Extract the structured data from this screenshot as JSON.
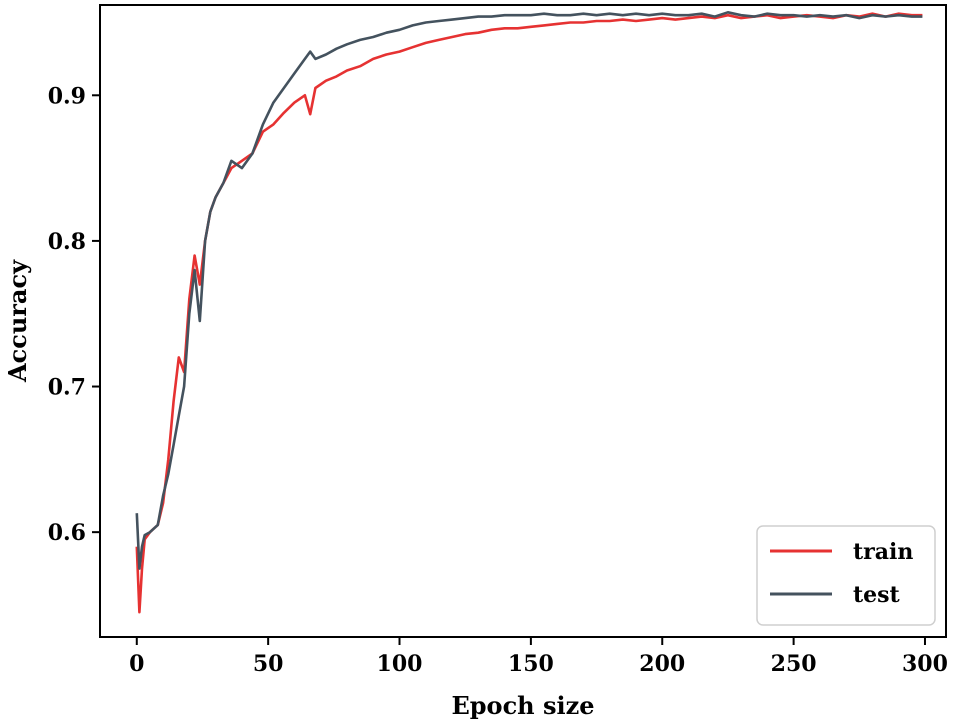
{
  "chart_data": {
    "type": "line",
    "title": "",
    "xlabel": "Epoch size",
    "ylabel": "Accuracy",
    "xlim": [
      -14,
      308
    ],
    "ylim": [
      0.528,
      0.962
    ],
    "xticks": [
      0,
      50,
      100,
      150,
      200,
      250,
      300
    ],
    "xtick_labels": [
      "0",
      "50",
      "100",
      "150",
      "200",
      "250",
      "300"
    ],
    "yticks": [
      0.6,
      0.7,
      0.8,
      0.9
    ],
    "ytick_labels": [
      "0.6",
      "0.7",
      "0.8",
      "0.9"
    ],
    "grid": false,
    "legend_position": "bottom-right",
    "series": [
      {
        "name": "train",
        "color": "#e63232",
        "x": [
          0,
          1,
          2,
          3,
          5,
          8,
          10,
          12,
          14,
          16,
          18,
          20,
          22,
          24,
          26,
          28,
          30,
          33,
          36,
          40,
          44,
          48,
          52,
          56,
          60,
          64,
          66,
          68,
          72,
          76,
          80,
          85,
          90,
          95,
          100,
          105,
          110,
          115,
          120,
          125,
          130,
          135,
          140,
          145,
          150,
          155,
          160,
          165,
          170,
          175,
          180,
          185,
          190,
          195,
          200,
          205,
          210,
          215,
          220,
          225,
          230,
          235,
          240,
          245,
          250,
          255,
          260,
          265,
          270,
          275,
          280,
          285,
          290,
          295,
          299
        ],
        "y": [
          0.59,
          0.545,
          0.575,
          0.595,
          0.6,
          0.605,
          0.62,
          0.65,
          0.69,
          0.72,
          0.71,
          0.76,
          0.79,
          0.77,
          0.8,
          0.82,
          0.83,
          0.84,
          0.85,
          0.855,
          0.86,
          0.875,
          0.88,
          0.888,
          0.895,
          0.9,
          0.887,
          0.905,
          0.91,
          0.913,
          0.917,
          0.92,
          0.925,
          0.928,
          0.93,
          0.933,
          0.936,
          0.938,
          0.94,
          0.942,
          0.943,
          0.945,
          0.946,
          0.946,
          0.947,
          0.948,
          0.949,
          0.95,
          0.95,
          0.951,
          0.951,
          0.952,
          0.951,
          0.952,
          0.953,
          0.952,
          0.953,
          0.954,
          0.953,
          0.955,
          0.953,
          0.954,
          0.955,
          0.953,
          0.954,
          0.955,
          0.954,
          0.953,
          0.955,
          0.954,
          0.956,
          0.954,
          0.956,
          0.955,
          0.955
        ]
      },
      {
        "name": "test",
        "color": "#44525e",
        "x": [
          0,
          1,
          2,
          3,
          5,
          8,
          10,
          12,
          14,
          16,
          18,
          20,
          22,
          24,
          26,
          28,
          30,
          33,
          36,
          40,
          44,
          48,
          52,
          56,
          60,
          64,
          66,
          68,
          72,
          76,
          80,
          85,
          90,
          95,
          100,
          105,
          110,
          115,
          120,
          125,
          130,
          135,
          140,
          145,
          150,
          155,
          160,
          165,
          170,
          175,
          180,
          185,
          190,
          195,
          200,
          205,
          210,
          215,
          220,
          225,
          230,
          235,
          240,
          245,
          250,
          255,
          260,
          265,
          270,
          275,
          280,
          285,
          290,
          295,
          299
        ],
        "y": [
          0.613,
          0.575,
          0.59,
          0.598,
          0.6,
          0.605,
          0.625,
          0.64,
          0.66,
          0.68,
          0.7,
          0.75,
          0.78,
          0.745,
          0.8,
          0.82,
          0.83,
          0.84,
          0.855,
          0.85,
          0.86,
          0.88,
          0.895,
          0.905,
          0.915,
          0.925,
          0.93,
          0.925,
          0.928,
          0.932,
          0.935,
          0.938,
          0.94,
          0.943,
          0.945,
          0.948,
          0.95,
          0.951,
          0.952,
          0.953,
          0.954,
          0.954,
          0.955,
          0.955,
          0.955,
          0.956,
          0.955,
          0.955,
          0.956,
          0.955,
          0.956,
          0.955,
          0.956,
          0.955,
          0.956,
          0.955,
          0.955,
          0.956,
          0.954,
          0.957,
          0.955,
          0.954,
          0.956,
          0.955,
          0.955,
          0.954,
          0.955,
          0.954,
          0.955,
          0.953,
          0.955,
          0.954,
          0.955,
          0.954,
          0.954
        ]
      }
    ]
  }
}
